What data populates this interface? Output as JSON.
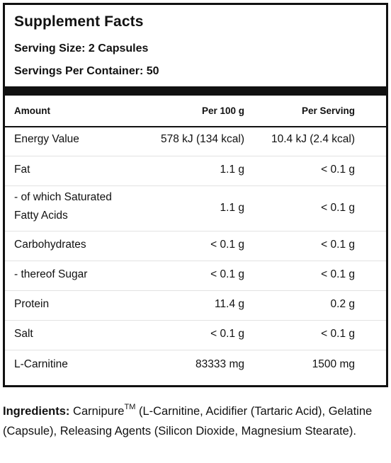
{
  "panel": {
    "title": "Supplement Facts",
    "serving_size": "Serving Size: 2 Capsules",
    "servings_per_container": "Servings Per Container: 50"
  },
  "table": {
    "headers": {
      "amount": "Amount",
      "per100": "Per 100 g",
      "serving": "Per Serving"
    },
    "rows": [
      {
        "name": "Energy Value",
        "per100": "578 kJ (134 kcal)",
        "serving": "10.4 kJ (2.4 kcal)"
      },
      {
        "name": "Fat",
        "per100": "1.1 g",
        "serving": "< 0.1 g"
      },
      {
        "name": "- of which Saturated",
        "name2": "Fatty Acids",
        "per100": "1.1 g",
        "serving": "< 0.1 g"
      },
      {
        "name": "Carbohydrates",
        "per100": "< 0.1 g",
        "serving": "< 0.1 g"
      },
      {
        "name": "- thereof Sugar",
        "per100": "< 0.1 g",
        "serving": "< 0.1 g"
      },
      {
        "name": "Protein",
        "per100": "11.4 g",
        "serving": "0.2 g"
      },
      {
        "name": "Salt",
        "per100": "< 0.1 g",
        "serving": "< 0.1 g"
      },
      {
        "name": "L-Carnitine",
        "per100": "83333 mg",
        "serving": "1500 mg"
      }
    ]
  },
  "ingredients": {
    "label": "Ingredients:",
    "brand": "Carnipure",
    "tm": "TM",
    "text": " (L-Carnitine, Acidifier (Tartaric Acid), Gelatine (Capsule), Releasing Agents (Silicon Dioxide, Magnesium Stearate)."
  }
}
